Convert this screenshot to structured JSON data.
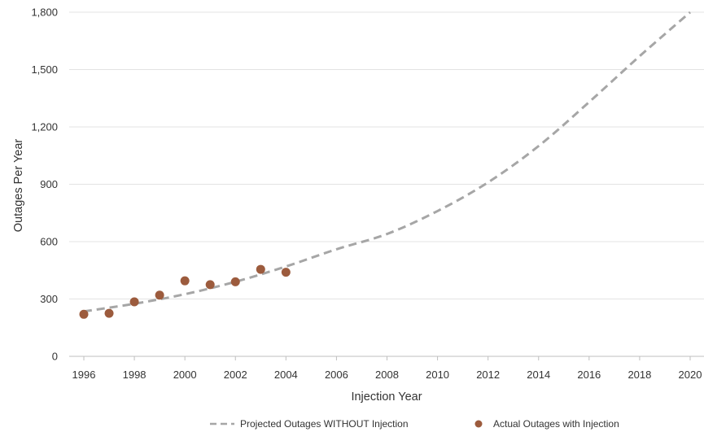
{
  "chart_data": {
    "type": "line",
    "title": "",
    "xlabel": "Injection Year",
    "ylabel": "Outages Per Year",
    "xlim": [
      1996,
      2020
    ],
    "ylim": [
      0,
      1800
    ],
    "x_ticks": [
      1996,
      1998,
      2000,
      2002,
      2004,
      2006,
      2008,
      2010,
      2012,
      2014,
      2016,
      2018,
      2020
    ],
    "x_tick_labels": [
      "1996",
      "1998",
      "2000",
      "2002",
      "2004",
      "2006",
      "2008",
      "2010",
      "2012",
      "2014",
      "2016",
      "2018",
      "2020"
    ],
    "y_ticks": [
      0,
      300,
      600,
      900,
      1200,
      1500,
      1800
    ],
    "y_tick_labels": [
      "0",
      "300",
      "600",
      "900",
      "1,200",
      "1,500",
      "1,800"
    ],
    "grid": "horizontal",
    "legend_position": "bottom",
    "series": [
      {
        "name": "Projected Outages WITHOUT Injection",
        "type": "line",
        "style": "dashed",
        "color": "#a6a6a6",
        "x": [
          1996,
          1998,
          2000,
          2002,
          2004,
          2006,
          2008,
          2010,
          2012,
          2014,
          2016,
          2018,
          2020
        ],
        "values": [
          235,
          275,
          325,
          390,
          470,
          560,
          640,
          760,
          910,
          1100,
          1330,
          1570,
          1800
        ]
      },
      {
        "name": "Actual Outages with Injection",
        "type": "scatter",
        "color": "#9c5b3d",
        "x": [
          1996,
          1997,
          1998,
          1999,
          2000,
          2001,
          2002,
          2003,
          2004
        ],
        "values": [
          220,
          225,
          285,
          320,
          395,
          375,
          390,
          455,
          440
        ]
      }
    ]
  }
}
